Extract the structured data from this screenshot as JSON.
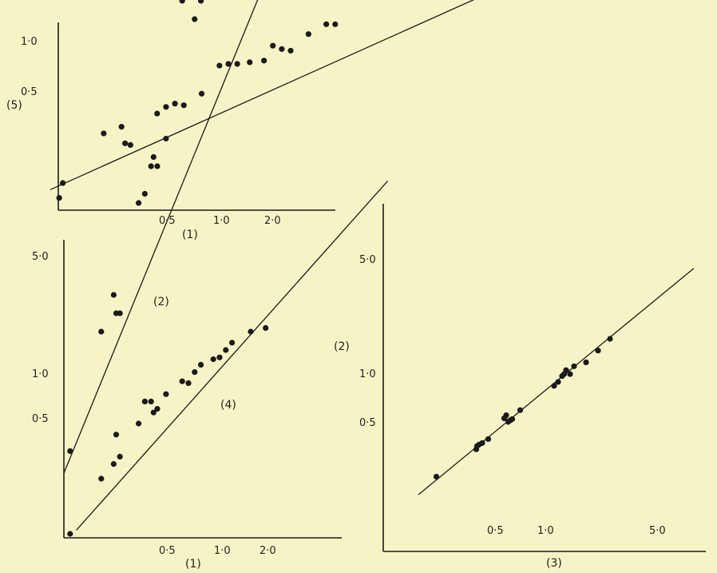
{
  "chart_data": [
    {
      "type": "scatter",
      "panel": "top-left",
      "xlabel": "(1)",
      "ylabel": "(5)",
      "x_ticks": [
        "0·5",
        "1·0",
        "2·0"
      ],
      "y_ticks": [
        "0·5",
        "1·0"
      ],
      "series": [
        {
          "points": [
            [
              0.05,
              0.05
            ],
            [
              0.07,
              0.14
            ],
            [
              0.3,
              0.44
            ],
            [
              0.4,
              0.48
            ],
            [
              0.42,
              0.38
            ],
            [
              0.45,
              0.37
            ],
            [
              0.6,
              0.56
            ],
            [
              0.65,
              0.6
            ],
            [
              0.7,
              0.62
            ],
            [
              0.75,
              0.61
            ],
            [
              0.85,
              0.68
            ],
            [
              0.95,
              0.85
            ],
            [
              1.0,
              0.86
            ],
            [
              1.05,
              0.86
            ],
            [
              1.12,
              0.87
            ],
            [
              1.2,
              0.88
            ],
            [
              1.25,
              0.97
            ],
            [
              1.3,
              0.95
            ],
            [
              1.35,
              0.94
            ],
            [
              1.45,
              1.04
            ],
            [
              1.55,
              1.1
            ],
            [
              1.6,
              1.1
            ]
          ],
          "fit": [
            [
              0.0,
              0.1
            ],
            [
              2.9,
              1.5
            ]
          ]
        }
      ]
    },
    {
      "type": "scatter",
      "panel": "bottom-left",
      "xlabel": "(1)",
      "x_ticks": [
        "0·5",
        "1·0",
        "2·0"
      ],
      "y_ticks": [
        "0·5",
        "1·0",
        "5·0"
      ],
      "series": [
        {
          "name": "(2)",
          "points": [
            [
              0.05,
              0.45
            ],
            [
              0.3,
              1.1
            ],
            [
              0.4,
              1.3
            ],
            [
              0.42,
              1.2
            ],
            [
              0.45,
              1.2
            ],
            [
              0.6,
              1.8
            ],
            [
              0.65,
              1.85
            ],
            [
              0.7,
              2.0
            ],
            [
              0.72,
              2.05
            ],
            [
              0.75,
              2.0
            ],
            [
              0.82,
              2.15
            ],
            [
              0.95,
              2.9
            ],
            [
              1.0,
              2.95
            ],
            [
              1.05,
              2.8
            ],
            [
              1.1,
              2.9
            ],
            [
              1.2,
              3.2
            ],
            [
              1.25,
              3.1
            ],
            [
              1.3,
              3.3
            ],
            [
              1.35,
              3.4
            ],
            [
              1.5,
              3.6
            ],
            [
              1.65,
              4.2
            ]
          ],
          "fit": [
            [
              0.0,
              0.33
            ],
            [
              2.7,
              4.8
            ]
          ]
        },
        {
          "name": "(4)",
          "points": [
            [
              0.05,
              0.0
            ],
            [
              0.3,
              0.3
            ],
            [
              0.4,
              0.38
            ],
            [
              0.42,
              0.54
            ],
            [
              0.45,
              0.42
            ],
            [
              0.6,
              0.6
            ],
            [
              0.65,
              0.72
            ],
            [
              0.7,
              0.72
            ],
            [
              0.72,
              0.66
            ],
            [
              0.75,
              0.68
            ],
            [
              0.82,
              0.76
            ],
            [
              0.95,
              0.83
            ],
            [
              1.0,
              0.82
            ],
            [
              1.05,
              0.88
            ],
            [
              1.1,
              0.92
            ],
            [
              1.2,
              0.95
            ],
            [
              1.25,
              0.96
            ],
            [
              1.3,
              1.0
            ],
            [
              1.35,
              1.04
            ],
            [
              1.5,
              1.1
            ],
            [
              1.62,
              1.12
            ]
          ],
          "fit": [
            [
              0.1,
              0.02
            ],
            [
              2.6,
              1.92
            ]
          ]
        }
      ]
    },
    {
      "type": "scatter",
      "panel": "right",
      "xlabel": "(3)",
      "ylabel": "(2)",
      "x_ticks": [
        "0·5",
        "1·0",
        "5·0"
      ],
      "y_ticks": [
        "0·5",
        "1·0",
        "5·0"
      ],
      "series": [
        {
          "points": [
            [
              0.55,
              0.48
            ],
            [
              1.55,
              1.18
            ],
            [
              1.57,
              1.26
            ],
            [
              1.62,
              1.3
            ],
            [
              1.7,
              1.34
            ],
            [
              1.85,
              1.44
            ],
            [
              2.25,
              1.97
            ],
            [
              2.3,
              2.05
            ],
            [
              2.35,
              1.88
            ],
            [
              2.4,
              1.92
            ],
            [
              2.45,
              1.95
            ],
            [
              2.65,
              2.18
            ],
            [
              3.5,
              2.8
            ],
            [
              3.6,
              2.9
            ],
            [
              3.7,
              3.05
            ],
            [
              3.75,
              3.1
            ],
            [
              3.8,
              3.2
            ],
            [
              3.9,
              3.1
            ],
            [
              4.0,
              3.3
            ],
            [
              4.3,
              3.4
            ],
            [
              4.6,
              3.7
            ],
            [
              4.9,
              4.0
            ]
          ],
          "fit": [
            [
              0.1,
              0.02
            ],
            [
              7.0,
              5.8
            ]
          ]
        }
      ]
    }
  ]
}
